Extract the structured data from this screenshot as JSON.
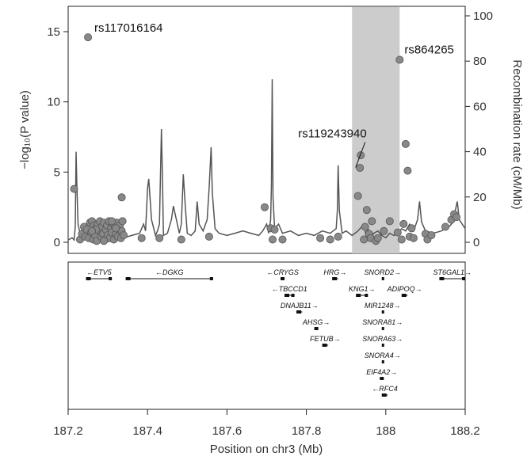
{
  "chart_data": {
    "type": "scatter",
    "x_axis": {
      "label_prefix": "Position on chr3 (Mb)",
      "range": [
        187.2,
        188.2
      ],
      "ticks": [
        "187.2",
        "187.4",
        "187.6",
        "187.8",
        "188",
        "188.2"
      ]
    },
    "y_axis_left": {
      "label": "−log₁₀(P value)",
      "range": [
        0,
        16
      ],
      "ticks": [
        "0",
        "5",
        "10",
        "15"
      ]
    },
    "y_axis_right": {
      "label": "Recombination rate (cM/Mb)",
      "range": [
        0,
        100
      ],
      "ticks": [
        "0",
        "20",
        "40",
        "60",
        "80",
        "100"
      ]
    },
    "highlight_region": [
      187.915,
      188.035
    ],
    "annotations": [
      {
        "label": "rs117016164",
        "x": 187.25,
        "y": 14.6
      },
      {
        "label": "rs864265",
        "x": 188.035,
        "y": 13.0
      },
      {
        "label": "rs119243940",
        "x": 187.92,
        "y": 5.1
      }
    ],
    "snps": [
      [
        187.215,
        3.8
      ],
      [
        187.23,
        0.2
      ],
      [
        187.235,
        0.6
      ],
      [
        187.24,
        1.1
      ],
      [
        187.243,
        0.4
      ],
      [
        187.247,
        0.9
      ],
      [
        187.25,
        14.6
      ],
      [
        187.252,
        0.3
      ],
      [
        187.255,
        1.4
      ],
      [
        187.258,
        0.7
      ],
      [
        187.26,
        1.5
      ],
      [
        187.263,
        0.2
      ],
      [
        187.265,
        1.2
      ],
      [
        187.268,
        0.5
      ],
      [
        187.27,
        1.0
      ],
      [
        187.272,
        0.1
      ],
      [
        187.275,
        1.3
      ],
      [
        187.278,
        0.8
      ],
      [
        187.28,
        1.5
      ],
      [
        187.283,
        0.4
      ],
      [
        187.285,
        1.1
      ],
      [
        187.288,
        0.6
      ],
      [
        187.29,
        1.4
      ],
      [
        187.293,
        0.2
      ],
      [
        187.295,
        0.9
      ],
      [
        187.298,
        1.2
      ],
      [
        187.3,
        0.5
      ],
      [
        187.303,
        1.5
      ],
      [
        187.305,
        0.3
      ],
      [
        187.308,
        1.0
      ],
      [
        187.31,
        0.7
      ],
      [
        187.313,
        1.3
      ],
      [
        187.315,
        0.2
      ],
      [
        187.318,
        1.1
      ],
      [
        187.32,
        0.6
      ],
      [
        187.323,
        1.4
      ],
      [
        187.325,
        0.4
      ],
      [
        187.328,
        0.9
      ],
      [
        187.33,
        1.2
      ],
      [
        187.333,
        0.3
      ],
      [
        187.335,
        0.8
      ],
      [
        187.337,
        1.5
      ],
      [
        187.34,
        0.5
      ],
      [
        187.27,
        0.9
      ],
      [
        187.29,
        0.1
      ],
      [
        187.31,
        1.5
      ],
      [
        187.26,
        0.8
      ],
      [
        187.32,
        1.0
      ],
      [
        187.335,
        3.2
      ],
      [
        187.385,
        0.3
      ],
      [
        187.43,
        0.3
      ],
      [
        187.485,
        0.2
      ],
      [
        187.555,
        0.4
      ],
      [
        187.695,
        2.5
      ],
      [
        187.71,
        1.0
      ],
      [
        187.715,
        0.2
      ],
      [
        187.72,
        0.9
      ],
      [
        187.74,
        0.2
      ],
      [
        187.835,
        0.3
      ],
      [
        187.86,
        0.2
      ],
      [
        187.88,
        0.4
      ],
      [
        187.93,
        3.3
      ],
      [
        187.935,
        5.3
      ],
      [
        187.937,
        6.2
      ],
      [
        187.945,
        0.2
      ],
      [
        187.948,
        1.1
      ],
      [
        187.952,
        2.3
      ],
      [
        187.958,
        0.6
      ],
      [
        187.962,
        0.3
      ],
      [
        187.965,
        1.5
      ],
      [
        187.975,
        0.1
      ],
      [
        187.98,
        0.3
      ],
      [
        187.995,
        0.8
      ],
      [
        188.01,
        1.5
      ],
      [
        188.03,
        0.7
      ],
      [
        188.035,
        13.0
      ],
      [
        188.04,
        0.2
      ],
      [
        188.045,
        1.3
      ],
      [
        188.05,
        7.0
      ],
      [
        188.055,
        5.1
      ],
      [
        188.06,
        0.4
      ],
      [
        188.065,
        1.0
      ],
      [
        188.07,
        0.3
      ],
      [
        188.1,
        0.6
      ],
      [
        188.105,
        0.2
      ],
      [
        188.115,
        0.5
      ],
      [
        188.15,
        1.1
      ],
      [
        188.165,
        1.6
      ],
      [
        188.172,
        2.0
      ],
      [
        188.178,
        1.8
      ]
    ],
    "recomb": [
      [
        187.2,
        1
      ],
      [
        187.21,
        2
      ],
      [
        187.215,
        1
      ],
      [
        187.218,
        7
      ],
      [
        187.22,
        40
      ],
      [
        187.222,
        25
      ],
      [
        187.225,
        8
      ],
      [
        187.23,
        4
      ],
      [
        187.245,
        2
      ],
      [
        187.26,
        2
      ],
      [
        187.3,
        2
      ],
      [
        187.33,
        3
      ],
      [
        187.34,
        2
      ],
      [
        187.36,
        3
      ],
      [
        187.38,
        4
      ],
      [
        187.385,
        6
      ],
      [
        187.39,
        8
      ],
      [
        187.395,
        5
      ],
      [
        187.4,
        24
      ],
      [
        187.403,
        28
      ],
      [
        187.41,
        10
      ],
      [
        187.42,
        3
      ],
      [
        187.425,
        5
      ],
      [
        187.43,
        8
      ],
      [
        187.435,
        50
      ],
      [
        187.438,
        25
      ],
      [
        187.44,
        3
      ],
      [
        187.45,
        4
      ],
      [
        187.46,
        10
      ],
      [
        187.465,
        16
      ],
      [
        187.47,
        12
      ],
      [
        187.48,
        4
      ],
      [
        187.485,
        8
      ],
      [
        187.49,
        30
      ],
      [
        187.495,
        16
      ],
      [
        187.5,
        4
      ],
      [
        187.51,
        3
      ],
      [
        187.52,
        5
      ],
      [
        187.525,
        18
      ],
      [
        187.53,
        8
      ],
      [
        187.54,
        5
      ],
      [
        187.55,
        10
      ],
      [
        187.555,
        24
      ],
      [
        187.56,
        42
      ],
      [
        187.563,
        22
      ],
      [
        187.57,
        6
      ],
      [
        187.58,
        4
      ],
      [
        187.6,
        3
      ],
      [
        187.62,
        4
      ],
      [
        187.64,
        5
      ],
      [
        187.66,
        4
      ],
      [
        187.68,
        3
      ],
      [
        187.69,
        5
      ],
      [
        187.7,
        8
      ],
      [
        187.705,
        4
      ],
      [
        187.71,
        10
      ],
      [
        187.712,
        25
      ],
      [
        187.714,
        72
      ],
      [
        187.716,
        20
      ],
      [
        187.72,
        6
      ],
      [
        187.73,
        8
      ],
      [
        187.74,
        4
      ],
      [
        187.76,
        5
      ],
      [
        187.78,
        3
      ],
      [
        187.8,
        4
      ],
      [
        187.82,
        3
      ],
      [
        187.84,
        5
      ],
      [
        187.86,
        4
      ],
      [
        187.875,
        6
      ],
      [
        187.878,
        14
      ],
      [
        187.88,
        34
      ],
      [
        187.883,
        14
      ],
      [
        187.89,
        4
      ],
      [
        187.9,
        5
      ],
      [
        187.915,
        3
      ],
      [
        187.93,
        5
      ],
      [
        187.945,
        8
      ],
      [
        187.95,
        3
      ],
      [
        187.955,
        6
      ],
      [
        187.96,
        2
      ],
      [
        187.97,
        4
      ],
      [
        187.98,
        5
      ],
      [
        187.99,
        3
      ],
      [
        188.0,
        2
      ],
      [
        188.01,
        4
      ],
      [
        188.02,
        3
      ],
      [
        188.03,
        4
      ],
      [
        188.04,
        6
      ],
      [
        188.05,
        5
      ],
      [
        188.06,
        8
      ],
      [
        188.07,
        5
      ],
      [
        188.08,
        10
      ],
      [
        188.085,
        18
      ],
      [
        188.09,
        9
      ],
      [
        188.1,
        5
      ],
      [
        188.12,
        4
      ],
      [
        188.14,
        5
      ],
      [
        188.16,
        7
      ],
      [
        188.17,
        9
      ],
      [
        188.175,
        14
      ],
      [
        188.18,
        18
      ],
      [
        188.185,
        10
      ],
      [
        188.2,
        6
      ]
    ],
    "genes": [
      {
        "name": "ETV5",
        "start": 187.245,
        "end": 187.31,
        "dir": "left",
        "row": 0
      },
      {
        "name": "DGKG",
        "start": 187.345,
        "end": 187.565,
        "dir": "left",
        "row": 0
      },
      {
        "name": "CRYGS",
        "start": 187.735,
        "end": 187.745,
        "dir": "left",
        "row": 0
      },
      {
        "name": "HRG",
        "start": 187.865,
        "end": 187.88,
        "dir": "right",
        "row": 0
      },
      {
        "name": "SNORD2",
        "start": 187.99,
        "end": 187.992,
        "dir": "right",
        "row": 0
      },
      {
        "name": "ST6GAL1",
        "start": 188.135,
        "end": 188.2,
        "dir": "right",
        "row": 0
      },
      {
        "name": "TBCCD1",
        "start": 187.745,
        "end": 187.77,
        "dir": "left",
        "row": 1
      },
      {
        "name": "KNG1",
        "start": 187.925,
        "end": 187.955,
        "dir": "right",
        "row": 1
      },
      {
        "name": "ADIPOQ",
        "start": 188.04,
        "end": 188.055,
        "dir": "right",
        "row": 1
      },
      {
        "name": "DNAJB11",
        "start": 187.775,
        "end": 187.79,
        "dir": "right",
        "row": 2
      },
      {
        "name": "MIR1248",
        "start": 187.99,
        "end": 187.992,
        "dir": "right",
        "row": 2
      },
      {
        "name": "AHSG",
        "start": 187.82,
        "end": 187.83,
        "dir": "right",
        "row": 3
      },
      {
        "name": "SNORA81",
        "start": 187.99,
        "end": 187.992,
        "dir": "right",
        "row": 3
      },
      {
        "name": "FETUB",
        "start": 187.84,
        "end": 187.855,
        "dir": "right",
        "row": 4
      },
      {
        "name": "SNORA63",
        "start": 187.99,
        "end": 187.992,
        "dir": "right",
        "row": 4
      },
      {
        "name": "SNORA4",
        "start": 187.99,
        "end": 187.992,
        "dir": "right",
        "row": 5
      },
      {
        "name": "EIF4A2",
        "start": 187.985,
        "end": 187.995,
        "dir": "right",
        "row": 6
      },
      {
        "name": "RFC4",
        "start": 187.99,
        "end": 188.005,
        "dir": "left",
        "row": 7
      }
    ]
  }
}
